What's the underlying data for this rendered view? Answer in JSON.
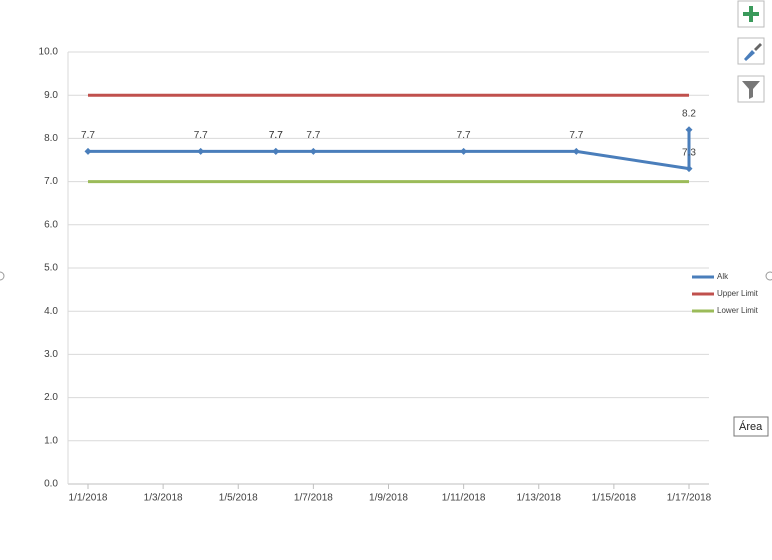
{
  "chart_data": {
    "type": "line",
    "x": [
      "1/1/2018",
      "1/4/2018",
      "1/6/2018",
      "1/6/2018",
      "1/7/2018",
      "1/11/2018",
      "1/14/2018",
      "1/17/2018",
      "1/17/2018"
    ],
    "series": [
      {
        "name": "Alk",
        "color": "#4a7ebb",
        "values": [
          7.7,
          7.7,
          7.7,
          7.7,
          7.7,
          7.7,
          7.7,
          7.3,
          8.2
        ],
        "markers": true,
        "data_labels": true
      },
      {
        "name": "Upper Limit",
        "color": "#c0504d",
        "values": [
          9,
          9,
          9,
          9,
          9,
          9,
          9,
          9,
          9
        ]
      },
      {
        "name": "Lower Limit",
        "color": "#9bbb59",
        "values": [
          7,
          7,
          7,
          7,
          7,
          7,
          7,
          7,
          7
        ]
      }
    ],
    "xticks": [
      "1/1/2018",
      "1/3/2018",
      "1/5/2018",
      "1/7/2018",
      "1/9/2018",
      "1/11/2018",
      "1/13/2018",
      "1/15/2018",
      "1/17/2018"
    ],
    "ylim": [
      0,
      10
    ],
    "yticks": [
      {
        "value": 0,
        "label": "0.0"
      },
      {
        "value": 1,
        "label": "1.0"
      },
      {
        "value": 2,
        "label": "2.0"
      },
      {
        "value": 3,
        "label": "3.0"
      },
      {
        "value": 4,
        "label": "4.0"
      },
      {
        "value": 5,
        "label": "5.0"
      },
      {
        "value": 6,
        "label": "6.0"
      },
      {
        "value": 7,
        "label": "7.0"
      },
      {
        "value": 8,
        "label": "8.0"
      },
      {
        "value": 9,
        "label": "9.0"
      },
      {
        "value": 10,
        "label": "10.0"
      }
    ],
    "grid": true,
    "legend": "right"
  },
  "ui": {
    "tooltip": "Área"
  }
}
